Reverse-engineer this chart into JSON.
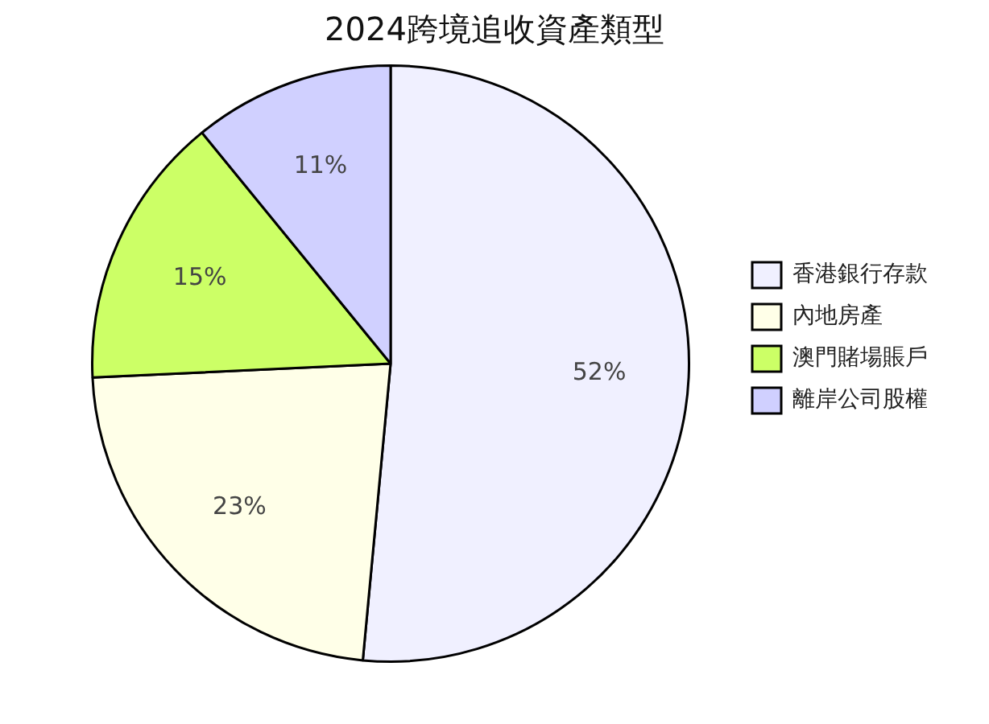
{
  "chart_data": {
    "type": "pie",
    "title": "2024跨境追收資產類型",
    "categories": [
      "香港銀行存款",
      "內地房產",
      "澳門賭場賬戶",
      "離岸公司股權"
    ],
    "values": [
      52,
      23,
      15,
      11
    ],
    "colors": [
      "#f0f0ff",
      "#ffffe8",
      "#ccff66",
      "#d0d0ff"
    ],
    "value_labels": [
      "52%",
      "23%",
      "15%",
      "11%"
    ],
    "legend": "right"
  }
}
